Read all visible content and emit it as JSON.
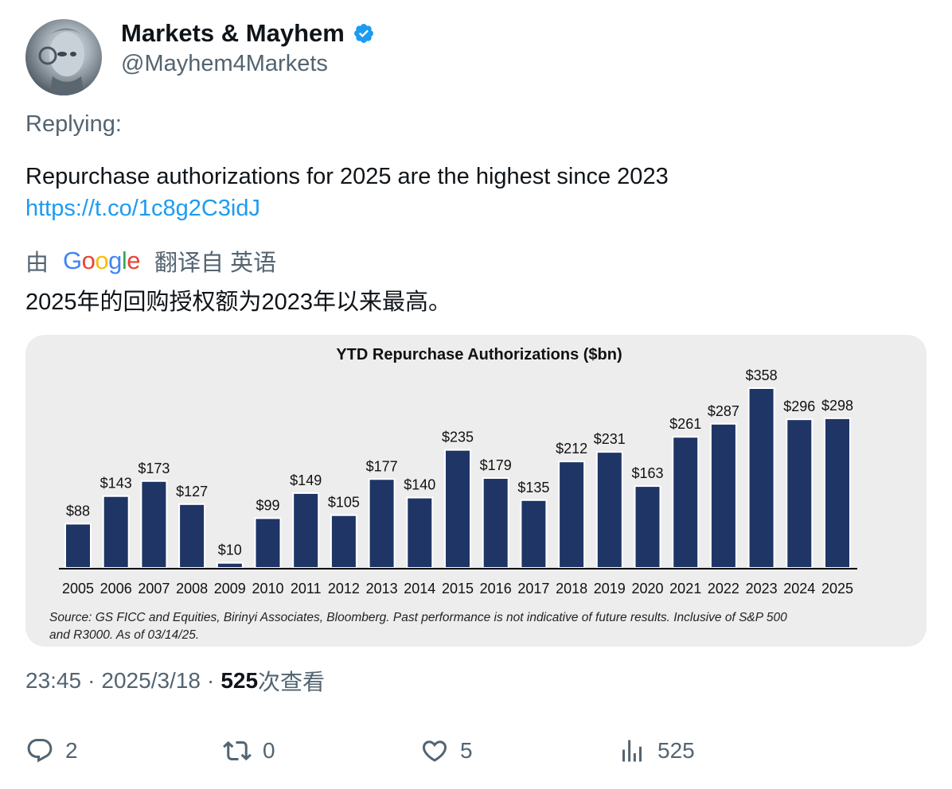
{
  "author": {
    "name": "Markets & Mayhem",
    "handle": "@Mayhem4Markets",
    "avatar_icon": "robot-avatar-icon",
    "verified_icon": "verified-badge-icon",
    "verified_color": "#1d9bf0"
  },
  "replying_label": "Replying:",
  "tweet": {
    "text": "Repurchase authorizations for 2025 are the highest since 2023",
    "link": "https://t.co/1c8g2C3idJ"
  },
  "translation": {
    "prefix": "由",
    "provider": "Google",
    "suffix": "翻译自 英语",
    "text": "2025年的回购授权额为2023年以来最高。"
  },
  "chart_data": {
    "type": "bar",
    "title": "YTD Repurchase Authorizations ($bn)",
    "categories": [
      "2005",
      "2006",
      "2007",
      "2008",
      "2009",
      "2010",
      "2011",
      "2012",
      "2013",
      "2014",
      "2015",
      "2016",
      "2017",
      "2018",
      "2019",
      "2020",
      "2021",
      "2022",
      "2023",
      "2024",
      "2025"
    ],
    "values": [
      88,
      143,
      173,
      127,
      10,
      99,
      149,
      105,
      177,
      140,
      235,
      179,
      135,
      212,
      231,
      163,
      261,
      287,
      358,
      296,
      298
    ],
    "labels": [
      "$88",
      "$143",
      "$173",
      "$127",
      "$10",
      "$99",
      "$149",
      "$105",
      "$177",
      "$140",
      "$235",
      "$179",
      "$135",
      "$212",
      "$231",
      "$163",
      "$261",
      "$287",
      "$358",
      "$296",
      "$298"
    ],
    "ylim": [
      0,
      358
    ],
    "bar_color": "#1f3566",
    "grid": false,
    "source_line1": "Source: GS FICC and Equities, Birinyi Associates, Bloomberg. Past performance is not indicative of future results. Inclusive of S&P 500",
    "source_line2": "and R3000. As of 03/14/25."
  },
  "meta": {
    "time": "23:45",
    "separator": "·",
    "date": "2025/3/18",
    "views_count": "525",
    "views_label": "次查看"
  },
  "actions": {
    "replies": "2",
    "reposts": "0",
    "likes": "5",
    "views": "525",
    "reply_icon": "reply-icon",
    "repost_icon": "repost-icon",
    "like_icon": "heart-icon",
    "views_icon": "analytics-icon"
  }
}
